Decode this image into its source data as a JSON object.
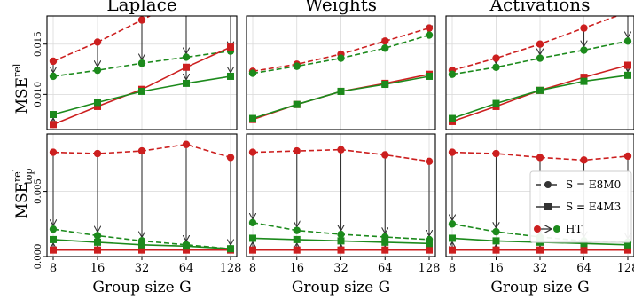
{
  "figure": {
    "xlabel": "Group size G",
    "ylabel_top": "MSE",
    "ylabel_top_sup": "rel",
    "ylabel_bottom": "MSE",
    "ylabel_bottom_sup": "rel",
    "ylabel_bottom_sub": "top",
    "colors": {
      "red": "#cc1f1f",
      "green": "#1c8a1c",
      "arrow": "#333333"
    },
    "legend": {
      "entries": [
        {
          "label": "S = E8M0",
          "style": "dashed",
          "marker": "circle"
        },
        {
          "label": "S = E4M3",
          "style": "solid",
          "marker": "square"
        },
        {
          "label": "HT",
          "style": "arrow",
          "marker": "red-to-green-circle"
        }
      ],
      "placement": "bottom-right panel, right"
    }
  },
  "chart_data": [
    {
      "type": "line",
      "title": "Laplace",
      "row": "MSE rel",
      "x": [
        "8",
        "16",
        "32",
        "64",
        "128"
      ],
      "ylim": [
        0.0065,
        0.0178
      ],
      "yticks": [
        "0.010",
        "0.015"
      ],
      "grid": true,
      "series": [
        {
          "color": "red",
          "style": "dashed",
          "values": [
            0.0133,
            0.0152,
            0.0174,
            null,
            null
          ]
        },
        {
          "color": "green",
          "style": "dashed",
          "values": [
            0.0118,
            0.0124,
            0.0131,
            0.0137,
            0.0143
          ]
        },
        {
          "color": "red",
          "style": "solid",
          "values": [
            0.007,
            0.0088,
            0.0105,
            0.0127,
            0.0147
          ]
        },
        {
          "color": "green",
          "style": "solid",
          "values": [
            0.008,
            0.0092,
            0.0103,
            0.0111,
            0.0118
          ]
        }
      ]
    },
    {
      "type": "line",
      "title": "Weights",
      "row": "MSE rel",
      "x": [
        "8",
        "16",
        "32",
        "64",
        "128"
      ],
      "ylim": [
        0.0065,
        0.0178
      ],
      "yticks": [],
      "grid": true,
      "series": [
        {
          "color": "red",
          "style": "dashed",
          "values": [
            0.0123,
            0.013,
            0.014,
            0.0153,
            0.0166
          ]
        },
        {
          "color": "green",
          "style": "dashed",
          "values": [
            0.0121,
            0.0128,
            0.0136,
            0.0146,
            0.0159
          ]
        },
        {
          "color": "red",
          "style": "solid",
          "values": [
            0.0075,
            0.009,
            0.0103,
            0.0111,
            0.012
          ]
        },
        {
          "color": "green",
          "style": "solid",
          "values": [
            0.0076,
            0.009,
            0.0103,
            0.011,
            0.0118
          ]
        }
      ]
    },
    {
      "type": "line",
      "title": "Activations",
      "row": "MSE rel",
      "x": [
        "8",
        "16",
        "32",
        "64",
        "128"
      ],
      "ylim": [
        0.0065,
        0.0178
      ],
      "yticks": [],
      "grid": true,
      "series": [
        {
          "color": "red",
          "style": "dashed",
          "values": [
            0.0124,
            0.0136,
            0.015,
            0.0166,
            null
          ]
        },
        {
          "color": "green",
          "style": "dashed",
          "values": [
            0.012,
            0.0127,
            0.0136,
            0.0144,
            0.0153
          ]
        },
        {
          "color": "red",
          "style": "solid",
          "values": [
            0.0073,
            0.0088,
            0.0104,
            0.0117,
            0.0129
          ]
        },
        {
          "color": "green",
          "style": "solid",
          "values": [
            0.0076,
            0.0091,
            0.0104,
            0.0113,
            0.0119
          ]
        }
      ]
    },
    {
      "type": "line",
      "title": "",
      "row": "MSE rel top",
      "x": [
        "8",
        "16",
        "32",
        "64",
        "128"
      ],
      "ylim": [
        0.0,
        0.0094
      ],
      "yticks": [
        "0.000",
        "0.005"
      ],
      "grid": true,
      "series": [
        {
          "color": "red",
          "style": "dashed",
          "values": [
            0.008,
            0.0079,
            0.0081,
            0.0086,
            0.0076
          ]
        },
        {
          "color": "green",
          "style": "dashed",
          "values": [
            0.0021,
            0.0016,
            0.0012,
            0.0009,
            0.0006
          ]
        },
        {
          "color": "red",
          "style": "solid",
          "values": [
            0.0005,
            0.0005,
            0.0005,
            0.0005,
            0.0005
          ]
        },
        {
          "color": "green",
          "style": "solid",
          "values": [
            0.0013,
            0.0011,
            0.0009,
            0.0008,
            0.0006
          ]
        }
      ]
    },
    {
      "type": "line",
      "title": "",
      "row": "MSE rel top",
      "x": [
        "8",
        "16",
        "32",
        "64",
        "128"
      ],
      "ylim": [
        0.0,
        0.0094
      ],
      "yticks": [],
      "grid": true,
      "series": [
        {
          "color": "red",
          "style": "dashed",
          "values": [
            0.008,
            0.0081,
            0.0082,
            0.0078,
            0.0073
          ]
        },
        {
          "color": "green",
          "style": "dashed",
          "values": [
            0.0026,
            0.002,
            0.0017,
            0.0015,
            0.0013
          ]
        },
        {
          "color": "red",
          "style": "solid",
          "values": [
            0.0005,
            0.0005,
            0.0005,
            0.0005,
            0.0005
          ]
        },
        {
          "color": "green",
          "style": "solid",
          "values": [
            0.0014,
            0.0013,
            0.0012,
            0.0011,
            0.001
          ]
        }
      ]
    },
    {
      "type": "line",
      "title": "",
      "row": "MSE rel top",
      "x": [
        "8",
        "16",
        "32",
        "64",
        "128"
      ],
      "ylim": [
        0.0,
        0.0094
      ],
      "yticks": [],
      "grid": true,
      "series": [
        {
          "color": "red",
          "style": "dashed",
          "values": [
            0.008,
            0.0079,
            0.0076,
            0.0074,
            0.0077
          ]
        },
        {
          "color": "green",
          "style": "dashed",
          "values": [
            0.0025,
            0.0019,
            0.0015,
            0.0012,
            0.0011
          ]
        },
        {
          "color": "red",
          "style": "solid",
          "values": [
            0.0005,
            0.0005,
            0.0005,
            0.0005,
            0.0005
          ]
        },
        {
          "color": "green",
          "style": "solid",
          "values": [
            0.0014,
            0.0012,
            0.0011,
            0.001,
            0.0009
          ]
        }
      ]
    }
  ]
}
